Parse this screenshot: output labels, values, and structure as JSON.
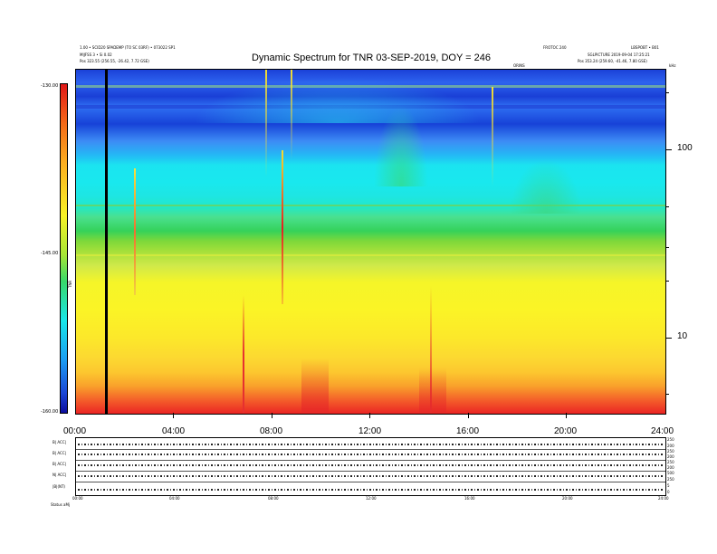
{
  "header": {
    "title": "Dynamic Spectrum for TNR 03-SEP-2019, DOY = 246",
    "left_line1": "1.00 • SCID20 SPADEMP (TO SC 03RF) • 073022 SP1",
    "left_line2": "MIJFSS 3 • Si 0.02",
    "left_line3": "Pos    323.55 (256.55, -26.42, 7.72 GSE)",
    "center_small": "ORINS",
    "right_top": "LBSPOBT • B01",
    "right_mid": "FROTOC 240",
    "right_line2": "SGLPICTURE 2019-09-04 17:25:21",
    "right_line3": "Pos    353.24 (259.60, -41.46, 7.80 GSE)",
    "corner_unit": "kHz"
  },
  "colorbar": {
    "label": "TNR",
    "ticks": [
      "-130.00",
      "-145.00",
      "-160.00"
    ]
  },
  "chart_data": {
    "type": "heatmap",
    "title": "Dynamic Spectrum for TNR 03-SEP-2019, DOY = 246",
    "x_label": "",
    "y_label": "",
    "x_ticks": [
      "00:00",
      "04:00",
      "08:00",
      "12:00",
      "16:00",
      "20:00",
      "24:00"
    ],
    "x_range_hours": [
      0,
      24
    ],
    "y_ticks": [
      "100",
      "10"
    ],
    "y_scale": "log",
    "y_unit": "kHz",
    "color_scale_range": [
      -160,
      -130
    ],
    "marker_time_hours": 1.2,
    "color_low": "#0c0c9e",
    "color_high": "#e01818"
  },
  "lower_panel": {
    "left_labels": [
      "B| ACC|",
      "B| ACC|",
      "B| ACC|",
      "N| ACC|",
      "|B|(NT)"
    ],
    "right_labels": [
      "250",
      "200",
      "250",
      "200",
      "250",
      "200",
      "500",
      "250",
      "5",
      "0"
    ],
    "x_ticks": [
      "00:00",
      "04:00",
      "08:00",
      "12:00",
      "16:00",
      "20:00",
      "24:00"
    ],
    "footer": "Status   aMj"
  },
  "colors": {
    "frame": "#000000",
    "background": "#ffffff"
  }
}
